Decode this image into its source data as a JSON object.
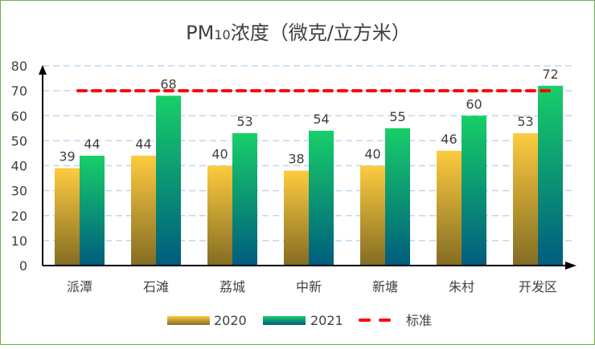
{
  "chart_data": {
    "type": "bar",
    "title": "PM10浓度（微克/立方米）",
    "title_parts": {
      "prefix": "PM",
      "sub": "10",
      "suffix": "浓度（微克/立方米）"
    },
    "categories": [
      "派潭",
      "石滩",
      "荔城",
      "中新",
      "新塘",
      "朱村",
      "开发区"
    ],
    "series": [
      {
        "name": "2020",
        "values": [
          39,
          44,
          40,
          38,
          40,
          46,
          53
        ],
        "color_top": "#fdcb3f",
        "color_bottom": "#836c23"
      },
      {
        "name": "2021",
        "values": [
          44,
          68,
          53,
          54,
          55,
          60,
          72
        ],
        "color_top": "#17cf68",
        "color_bottom": "#005c7f"
      }
    ],
    "reference_line": {
      "name": "标准",
      "value": 70,
      "color": "#ff0000",
      "style": "dashed"
    },
    "yticks": [
      "0",
      "10",
      "20",
      "30",
      "40",
      "50",
      "60",
      "70",
      "80"
    ],
    "ylim": [
      0,
      80
    ],
    "grid": true,
    "legend_position": "bottom",
    "border_color": "#70ad47"
  }
}
